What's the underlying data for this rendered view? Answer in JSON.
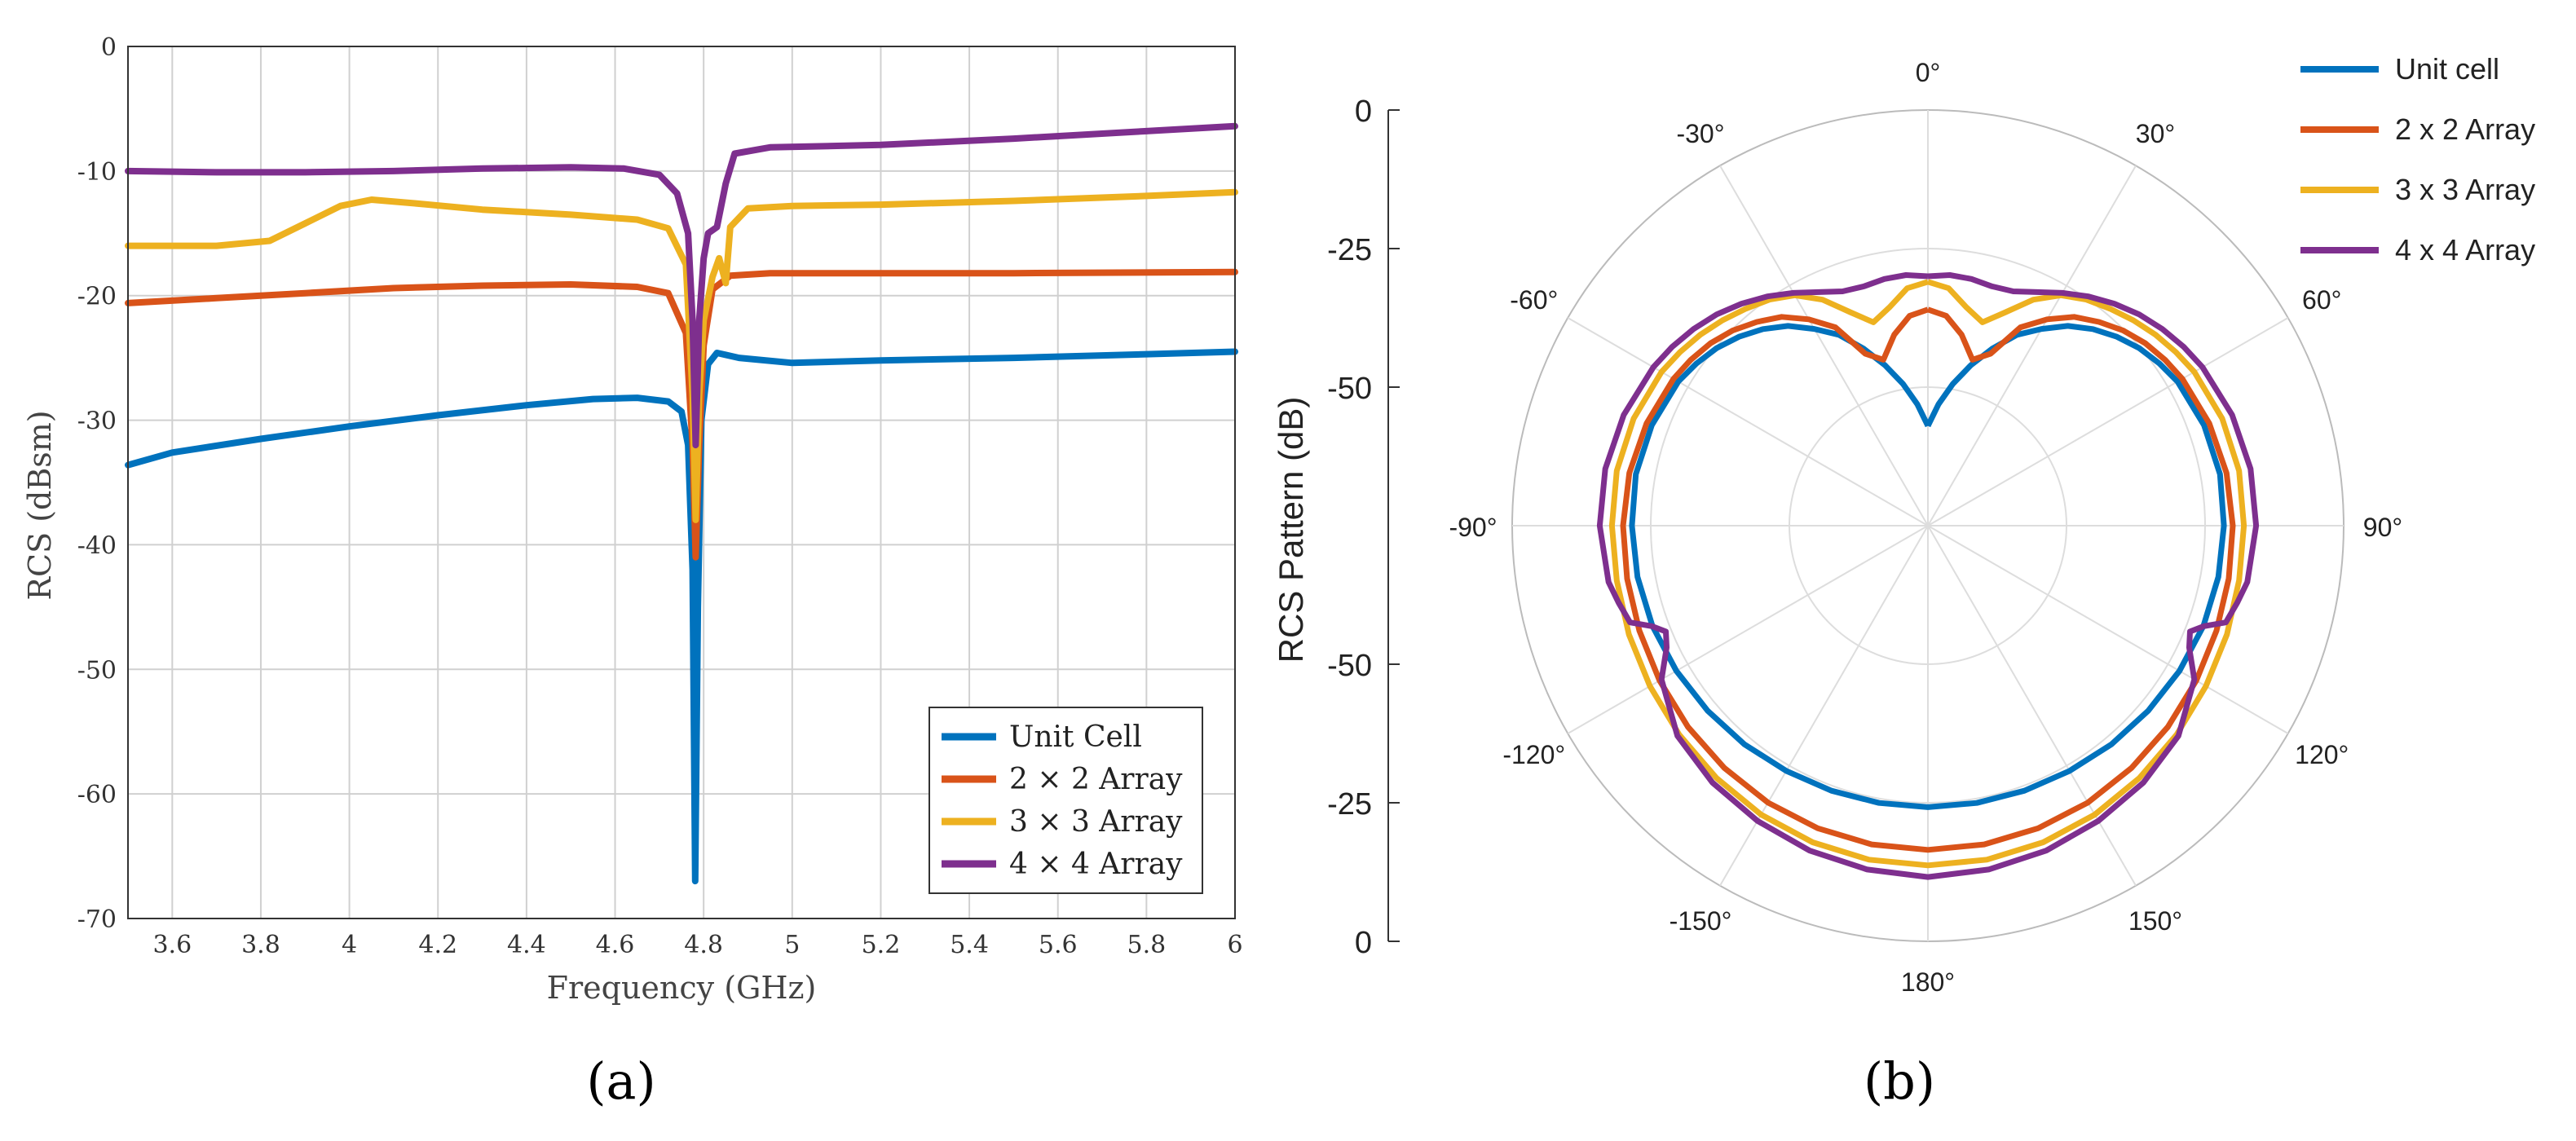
{
  "panels": {
    "a": {
      "caption": "(a)"
    },
    "b": {
      "caption": "(b)"
    }
  },
  "colors": {
    "unit": "#0072bd",
    "array2": "#d95319",
    "array3": "#edb120",
    "array4": "#7e2f8e",
    "grid": "#d0d0d0",
    "axis": "#333333"
  },
  "chart_data": [
    {
      "type": "line",
      "xlabel": "Frequency (GHz)",
      "ylabel": "RCS (dBsm)",
      "xlim": [
        3.5,
        6
      ],
      "ylim": [
        -70,
        0
      ],
      "xticks": [
        3.6,
        3.8,
        4,
        4.2,
        4.4,
        4.6,
        4.8,
        5,
        5.2,
        5.4,
        5.6,
        5.8,
        6
      ],
      "xtick_labels": [
        "3.6",
        "3.8",
        "4",
        "4.2",
        "4.4",
        "4.6",
        "4.8",
        "5",
        "5.2",
        "5.4",
        "5.6",
        "5.8",
        "6"
      ],
      "yticks": [
        -70,
        -60,
        -50,
        -40,
        -30,
        -20,
        -10,
        0
      ],
      "ytick_labels": [
        "-70",
        "-60",
        "-50",
        "-40",
        "-30",
        "-20",
        "-10",
        "0"
      ],
      "grid": true,
      "legend_position": "bottom-right",
      "series": [
        {
          "name": "Unit Cell",
          "color": "#0072bd",
          "points": [
            [
              3.5,
              -33.6
            ],
            [
              3.6,
              -32.6
            ],
            [
              3.8,
              -31.5
            ],
            [
              4.0,
              -30.5
            ],
            [
              4.2,
              -29.6
            ],
            [
              4.4,
              -28.8
            ],
            [
              4.55,
              -28.3
            ],
            [
              4.65,
              -28.2
            ],
            [
              4.72,
              -28.5
            ],
            [
              4.75,
              -29.3
            ],
            [
              4.765,
              -32
            ],
            [
              4.775,
              -42
            ],
            [
              4.781,
              -67
            ],
            [
              4.787,
              -45
            ],
            [
              4.795,
              -30
            ],
            [
              4.81,
              -25.5
            ],
            [
              4.83,
              -24.6
            ],
            [
              4.88,
              -25
            ],
            [
              5.0,
              -25.4
            ],
            [
              5.2,
              -25.2
            ],
            [
              5.5,
              -25
            ],
            [
              5.8,
              -24.7
            ],
            [
              6.0,
              -24.5
            ]
          ]
        },
        {
          "name": "2 × 2 Array",
          "color": "#d95319",
          "points": [
            [
              3.5,
              -20.6
            ],
            [
              3.7,
              -20.2
            ],
            [
              3.9,
              -19.8
            ],
            [
              4.1,
              -19.4
            ],
            [
              4.3,
              -19.2
            ],
            [
              4.5,
              -19.1
            ],
            [
              4.65,
              -19.3
            ],
            [
              4.72,
              -19.8
            ],
            [
              4.76,
              -23
            ],
            [
              4.775,
              -32
            ],
            [
              4.782,
              -41
            ],
            [
              4.79,
              -32
            ],
            [
              4.8,
              -24
            ],
            [
              4.82,
              -19.5
            ],
            [
              4.86,
              -18.4
            ],
            [
              4.95,
              -18.2
            ],
            [
              5.2,
              -18.2
            ],
            [
              5.5,
              -18.2
            ],
            [
              6.0,
              -18.1
            ]
          ]
        },
        {
          "name": "3 × 3 Array",
          "color": "#edb120",
          "points": [
            [
              3.5,
              -16.0
            ],
            [
              3.7,
              -16.0
            ],
            [
              3.82,
              -15.6
            ],
            [
              3.9,
              -14.2
            ],
            [
              3.98,
              -12.8
            ],
            [
              4.05,
              -12.3
            ],
            [
              4.15,
              -12.6
            ],
            [
              4.3,
              -13.1
            ],
            [
              4.5,
              -13.5
            ],
            [
              4.65,
              -13.9
            ],
            [
              4.72,
              -14.6
            ],
            [
              4.76,
              -17.5
            ],
            [
              4.775,
              -28
            ],
            [
              4.782,
              -38
            ],
            [
              4.79,
              -28
            ],
            [
              4.8,
              -22
            ],
            [
              4.82,
              -18.5
            ],
            [
              4.835,
              -17
            ],
            [
              4.85,
              -19
            ],
            [
              4.86,
              -14.5
            ],
            [
              4.9,
              -13
            ],
            [
              5.0,
              -12.8
            ],
            [
              5.2,
              -12.7
            ],
            [
              5.5,
              -12.4
            ],
            [
              5.8,
              -12
            ],
            [
              6.0,
              -11.7
            ]
          ]
        },
        {
          "name": "4 × 4 Array",
          "color": "#7e2f8e",
          "points": [
            [
              3.5,
              -10.0
            ],
            [
              3.7,
              -10.1
            ],
            [
              3.9,
              -10.1
            ],
            [
              4.1,
              -10.0
            ],
            [
              4.3,
              -9.8
            ],
            [
              4.5,
              -9.7
            ],
            [
              4.62,
              -9.8
            ],
            [
              4.7,
              -10.3
            ],
            [
              4.74,
              -11.8
            ],
            [
              4.765,
              -15
            ],
            [
              4.775,
              -22
            ],
            [
              4.782,
              -32
            ],
            [
              4.79,
              -22
            ],
            [
              4.8,
              -17
            ],
            [
              4.81,
              -15
            ],
            [
              4.83,
              -14.5
            ],
            [
              4.85,
              -11
            ],
            [
              4.87,
              -8.6
            ],
            [
              4.95,
              -8.1
            ],
            [
              5.2,
              -7.9
            ],
            [
              5.5,
              -7.4
            ],
            [
              5.8,
              -6.8
            ],
            [
              6.0,
              -6.4
            ]
          ]
        }
      ]
    },
    {
      "type": "polar",
      "rlabel": "RCS Pattern (dB)",
      "r_min": -75,
      "r_max": 0,
      "rtick_labels": [
        "0",
        "-25",
        "-50",
        "-50",
        "-25",
        "0"
      ],
      "angle_labels": [
        "0°",
        "30°",
        "60°",
        "90°",
        "120°",
        "150°",
        "180°",
        "-150°",
        "-120°",
        "-90°",
        "-60°",
        "-30°"
      ],
      "grid": true,
      "legend_position": "top-right",
      "series": [
        {
          "name": "Unit cell",
          "color": "#0072bd",
          "theta_deg": [
            0,
            5,
            10,
            15,
            20,
            25,
            30,
            35,
            40,
            45,
            50,
            55,
            60,
            70,
            80,
            90,
            100,
            110,
            120,
            130,
            140,
            150,
            160,
            170,
            180
          ],
          "r_db": [
            -57,
            -53,
            -49,
            -45,
            -41,
            -37,
            -34,
            -31,
            -28.7,
            -26.8,
            -25.2,
            -24,
            -23,
            -22,
            -21.5,
            -21.6,
            -21.8,
            -22.1,
            -22.6,
            -23.1,
            -23.5,
            -23.9,
            -24.1,
            -24.2,
            -24.2
          ]
        },
        {
          "name": "2 x 2 Array",
          "color": "#d95319",
          "theta_deg": [
            0,
            5,
            10,
            15,
            20,
            25,
            30,
            35,
            40,
            45,
            50,
            55,
            60,
            70,
            80,
            90,
            100,
            110,
            120,
            130,
            140,
            150,
            160,
            170,
            180
          ],
          "r_db": [
            -36,
            -37,
            -40,
            -44,
            -42,
            -35.5,
            -32,
            -29,
            -27,
            -25.2,
            -23.8,
            -22.8,
            -22,
            -21,
            -20.3,
            -20,
            -19.9,
            -19.6,
            -19.1,
            -18.5,
            -17.9,
            -17.3,
            -16.9,
            -16.6,
            -16.5
          ]
        },
        {
          "name": "3 x 3 Array",
          "color": "#edb120",
          "theta_deg": [
            0,
            5,
            10,
            15,
            20,
            25,
            30,
            35,
            40,
            45,
            50,
            55,
            60,
            70,
            80,
            90,
            100,
            110,
            120,
            130,
            140,
            150,
            160,
            170,
            180
          ],
          "r_db": [
            -31,
            -32,
            -35,
            -37,
            -34,
            -30,
            -27,
            -25.2,
            -23.9,
            -22.6,
            -21.4,
            -20.4,
            -19.5,
            -18.5,
            -18,
            -18,
            -18,
            -17.6,
            -17.1,
            -16.4,
            -15.6,
            -14.8,
            -14.2,
            -13.8,
            -13.7
          ]
        },
        {
          "name": "4 x 4 Array",
          "color": "#7e2f8e",
          "theta_deg": [
            0,
            5,
            10,
            15,
            20,
            25,
            30,
            35,
            40,
            45,
            50,
            55,
            60,
            70,
            80,
            90,
            100,
            104,
            108,
            110,
            112,
            115,
            120,
            130,
            140,
            150,
            160,
            170,
            180
          ],
          "r_db": [
            -30,
            -29.6,
            -29.8,
            -30.3,
            -30,
            -28.5,
            -26.5,
            -24.5,
            -22.7,
            -21.1,
            -19.8,
            -18.7,
            -17.8,
            -16.6,
            -15.9,
            -15.8,
            -16.5,
            -17.5,
            -18.5,
            -22,
            -24,
            -23,
            -19.5,
            -16,
            -14.5,
            -13.5,
            -12.6,
            -12,
            -11.6
          ]
        }
      ]
    }
  ]
}
